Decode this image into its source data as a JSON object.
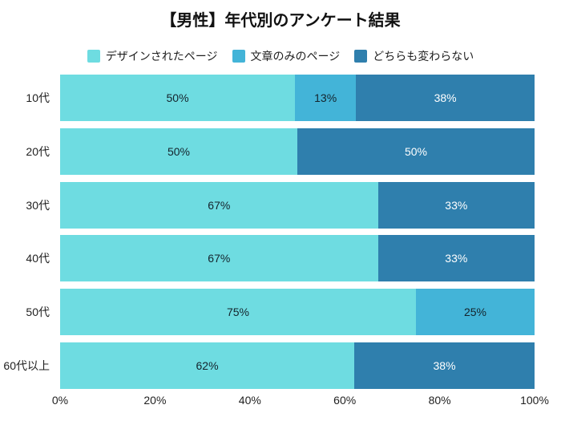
{
  "title": "【男性】年代別のアンケート結果",
  "colors": {
    "series": [
      "#6edce1",
      "#43b4d8",
      "#2f7fad"
    ],
    "dark_text": "#14232c",
    "light_text": "#ffffff",
    "axis_text": "#1f1f1f",
    "background": "#ffffff"
  },
  "legend": {
    "items": [
      {
        "label": "デザインされたページ",
        "color": "#6edce1"
      },
      {
        "label": "文章のみのページ",
        "color": "#43b4d8"
      },
      {
        "label": "どちらも変わらない",
        "color": "#2f7fad"
      }
    ]
  },
  "chart_data": {
    "type": "bar",
    "orientation": "horizontal",
    "stacked": true,
    "title": "【男性】年代別のアンケート結果",
    "categories": [
      "10代",
      "20代",
      "30代",
      "40代",
      "50代",
      "60代以上"
    ],
    "series": [
      {
        "name": "デザインされたページ",
        "color": "#6edce1",
        "values": [
          50,
          50,
          67,
          67,
          75,
          62
        ]
      },
      {
        "name": "文章のみのページ",
        "color": "#43b4d8",
        "values": [
          13,
          0,
          0,
          0,
          25,
          0
        ]
      },
      {
        "name": "どちらも変わらない",
        "color": "#2f7fad",
        "values": [
          38,
          50,
          33,
          33,
          0,
          38
        ]
      }
    ],
    "value_suffix": "%",
    "x_ticks": [
      "0%",
      "20%",
      "40%",
      "60%",
      "80%",
      "100%"
    ],
    "xlim": [
      0,
      100
    ],
    "legend_position": "top",
    "grid": false,
    "ylabel": "",
    "xlabel": ""
  }
}
